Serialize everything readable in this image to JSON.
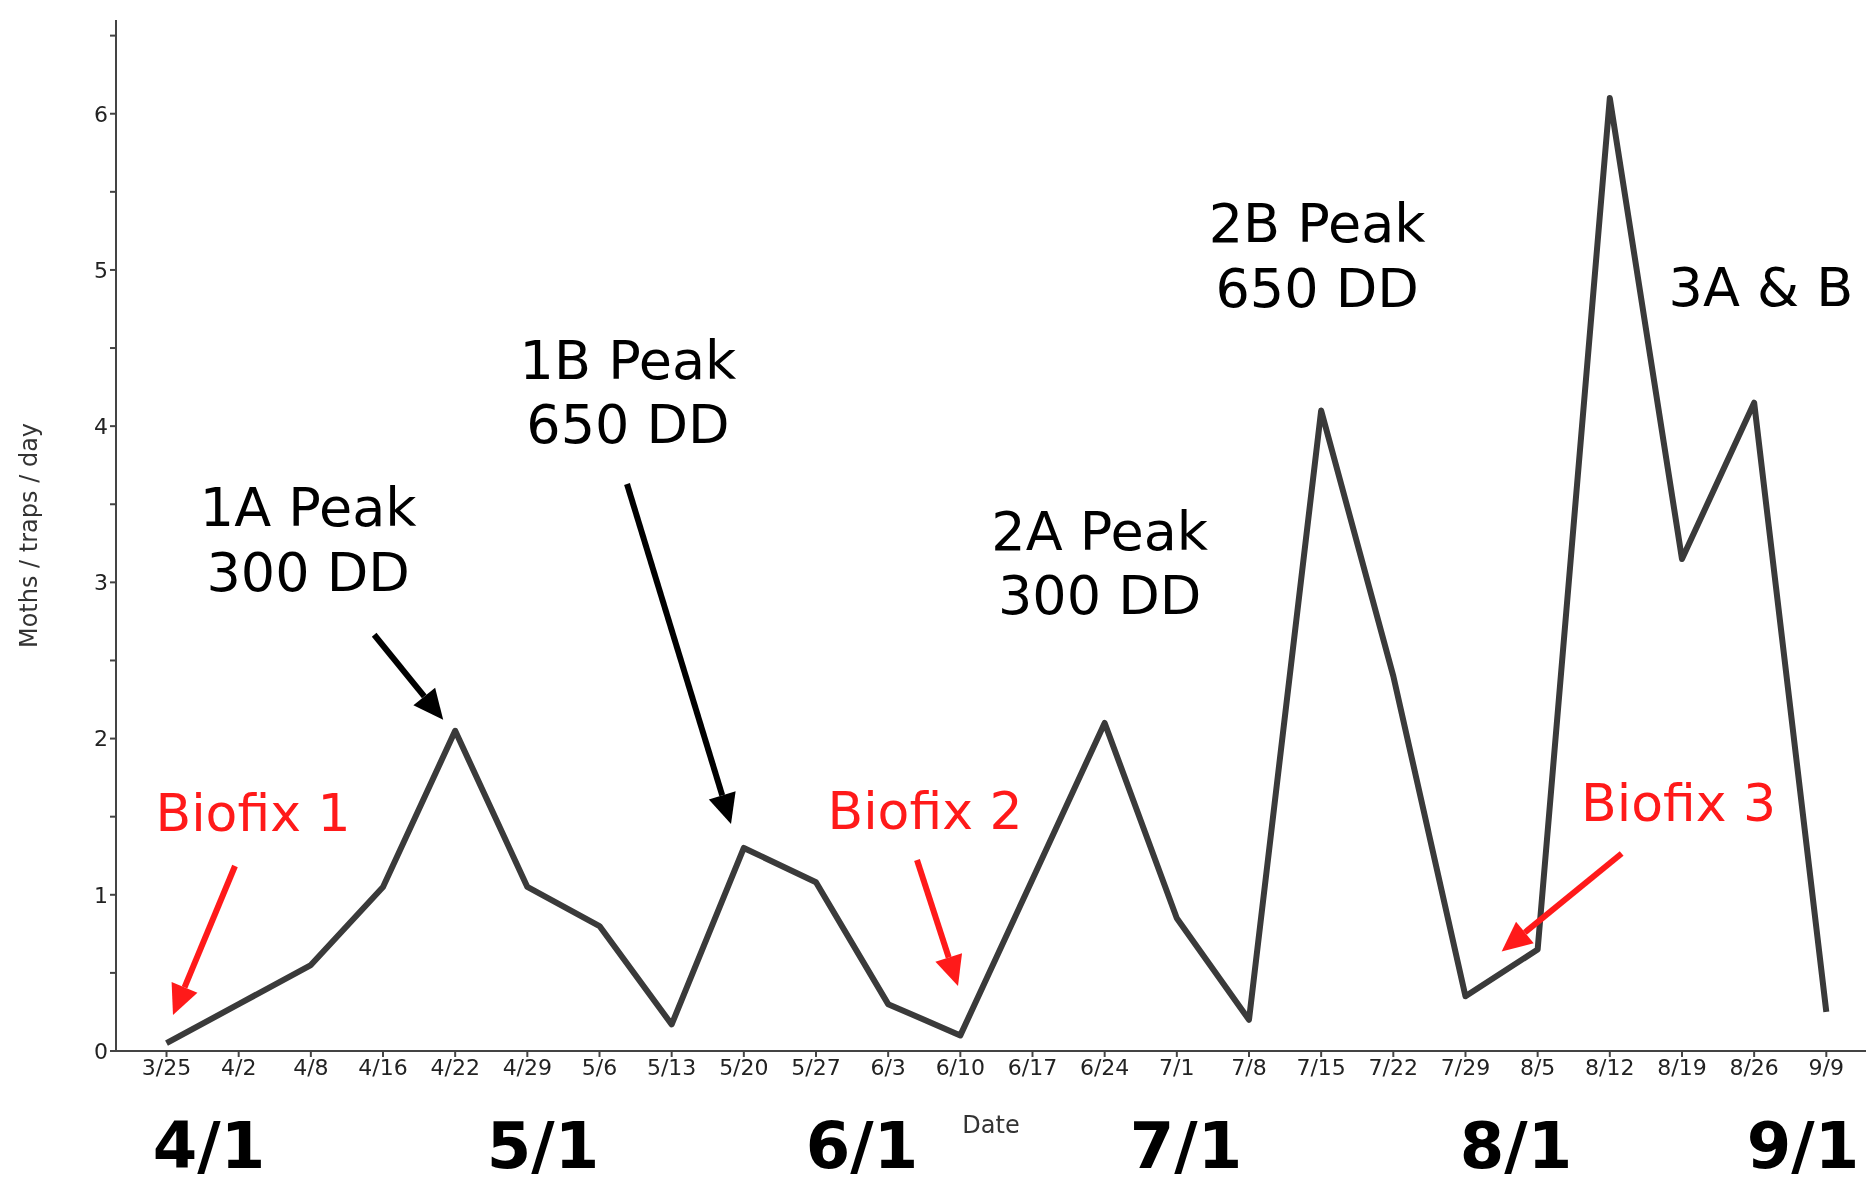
{
  "chart_data": {
    "type": "line",
    "xlabel": "Date",
    "ylabel": "Moths / traps / day",
    "categories": [
      "3/25",
      "4/2",
      "4/8",
      "4/16",
      "4/22",
      "4/29",
      "5/6",
      "5/13",
      "5/20",
      "5/27",
      "6/3",
      "6/10",
      "6/17",
      "6/24",
      "7/1",
      "7/8",
      "7/15",
      "7/22",
      "7/29",
      "8/5",
      "8/12",
      "8/19",
      "8/26",
      "9/9"
    ],
    "series": [
      {
        "color": "#3a3a3a",
        "values": [
          0.05,
          0.3,
          0.55,
          1.05,
          2.05,
          1.05,
          0.8,
          0.17,
          1.3,
          1.08,
          0.3,
          0.1,
          1.1,
          2.1,
          0.85,
          0.2,
          4.1,
          2.4,
          0.35,
          0.65,
          6.1,
          3.15,
          4.15,
          0.25
        ]
      }
    ],
    "ylim": [
      0,
      6.6
    ],
    "yticks": [
      0,
      {
        "value": 0.5,
        "label": null
      },
      1,
      {
        "value": 1.5,
        "label": null
      },
      2,
      {
        "value": 2.5,
        "label": null
      },
      3,
      {
        "value": 3.5,
        "label": null
      },
      4,
      {
        "value": 4.5,
        "label": null
      },
      5,
      {
        "value": 5.5,
        "label": null
      },
      6,
      {
        "value": 6.5,
        "label": null
      }
    ],
    "annotations": [
      {
        "text": "1A Peak\n300 DD",
        "x": "4/22",
        "y": 2.05
      },
      "1B Peak\n650 DD",
      {
        "text": "2A Peak\n300 DD",
        "x": "6/24",
        "y": 2.1
      },
      {
        "text": "2B Peak\n650 DD",
        "x": "7/15",
        "y": 4.1
      },
      "Biofix 1",
      "Biofix 2",
      {
        "text": "Biofix 3",
        "x": "8/5",
        "y": 0.65
      },
      "3A & B",
      "4/1",
      "5/1",
      "6/1",
      "7/1",
      "8/1",
      "9/1"
    ]
  }
}
